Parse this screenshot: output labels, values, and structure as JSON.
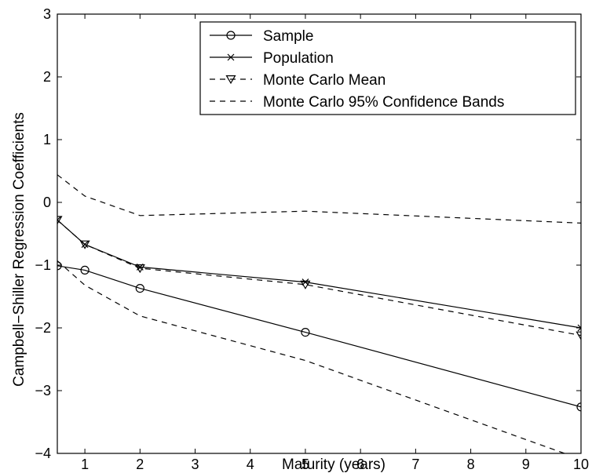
{
  "chart_data": {
    "type": "line",
    "title": "",
    "xlabel": "Maturity (years)",
    "ylabel": "Campbell−Shiller Regression Coefficients",
    "xlim": [
      0.5,
      10
    ],
    "ylim": [
      -4,
      3
    ],
    "x_ticks": [
      1,
      2,
      3,
      4,
      5,
      6,
      7,
      8,
      9,
      10
    ],
    "y_ticks": [
      -4,
      -3,
      -2,
      -1,
      0,
      1,
      2,
      3
    ],
    "x_tick_labels": [
      "1",
      "2",
      "3",
      "4",
      "5",
      "6",
      "7",
      "8",
      "9",
      "10"
    ],
    "y_tick_labels": [
      "−4",
      "−3",
      "−2",
      "−1",
      "0",
      "1",
      "2",
      "3"
    ],
    "grid": false,
    "legend_position": "top-right",
    "series": [
      {
        "name": "Sample",
        "style": "solid-circle",
        "x": [
          0.5,
          1,
          2,
          5,
          10
        ],
        "y": [
          -1.01,
          -1.08,
          -1.37,
          -2.07,
          -3.26
        ]
      },
      {
        "name": "Population",
        "style": "solid-x",
        "x": [
          0.5,
          1,
          2,
          5,
          10
        ],
        "y": [
          -0.28,
          -0.67,
          -1.03,
          -1.27,
          -2.0
        ]
      },
      {
        "name": "Monte Carlo Mean",
        "style": "dashed-triangle",
        "x": [
          0.5,
          1,
          2,
          5,
          10
        ],
        "y": [
          -0.28,
          -0.67,
          -1.05,
          -1.31,
          -2.12
        ]
      },
      {
        "name": "Monte Carlo 95% Confidence Bands",
        "style": "dashed",
        "x": [
          0.5,
          1,
          2,
          5,
          10
        ],
        "y": [
          0.44,
          0.1,
          -0.21,
          -0.14,
          -0.33
        ]
      },
      {
        "name": "",
        "style": "dashed",
        "x": [
          0.5,
          1,
          2,
          5,
          9.7
        ],
        "y": [
          -0.93,
          -1.32,
          -1.81,
          -2.52,
          -4.0
        ]
      }
    ]
  }
}
